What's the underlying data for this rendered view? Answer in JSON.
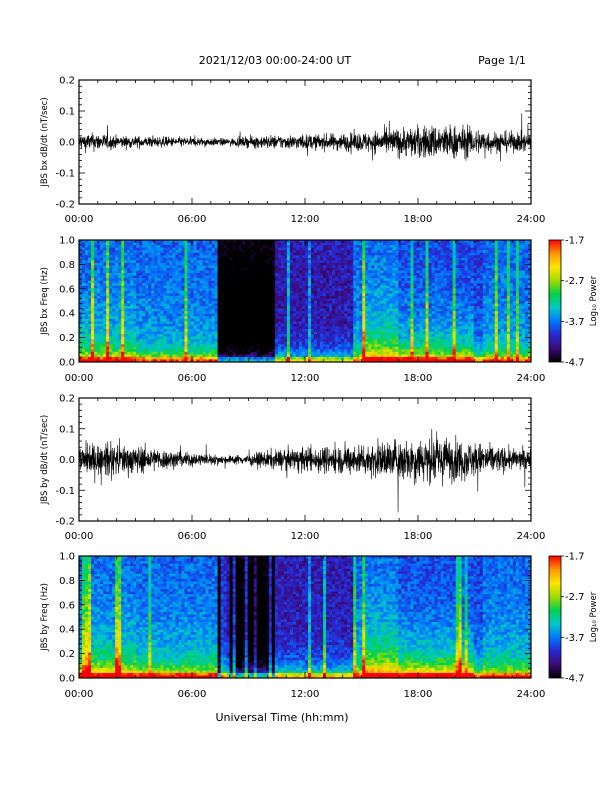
{
  "header": {
    "title": "2021/12/03  00:00-24:00 UT",
    "page": "Page 1/1"
  },
  "xaxis_label": "Universal Time (hh:mm)",
  "colorbar": {
    "label": "Log₁₀ Power",
    "ticks": [
      "-1.7",
      "-2.7",
      "-3.7",
      "-4.7"
    ],
    "colors": [
      "#000000",
      "#3c0a78",
      "#2828d2",
      "#0078ff",
      "#00c8c8",
      "#00d24b",
      "#a0dc00",
      "#ffe600",
      "#ff9600",
      "#ff0000"
    ]
  },
  "chart_data": [
    {
      "type": "line",
      "title": "",
      "ylabel": "JBS bx dB/dt (nT/sec)",
      "xlabel": "",
      "x_ticks": [
        "00:00",
        "06:00",
        "12:00",
        "18:00",
        "24:00"
      ],
      "y_ticks": [
        "0.2",
        "0.1",
        "0.0",
        "-0.1",
        "-0.2"
      ],
      "xlim": [
        0,
        24
      ],
      "ylim": [
        -0.2,
        0.2
      ],
      "amplitude_profile": [
        [
          0,
          0.025
        ],
        [
          1,
          0.025
        ],
        [
          2,
          0.018
        ],
        [
          4,
          0.015
        ],
        [
          6,
          0.013
        ],
        [
          8,
          0.01
        ],
        [
          9.5,
          0.018
        ],
        [
          11,
          0.02
        ],
        [
          13,
          0.022
        ],
        [
          15,
          0.027
        ],
        [
          16,
          0.033
        ],
        [
          17,
          0.04
        ],
        [
          18,
          0.045
        ],
        [
          19,
          0.05
        ],
        [
          20,
          0.048
        ],
        [
          21,
          0.04
        ],
        [
          22,
          0.03
        ],
        [
          24,
          0.026
        ]
      ]
    },
    {
      "type": "heatmap",
      "title": "",
      "ylabel": "JBS bx Freq (Hz)",
      "xlabel": "",
      "x_ticks": [
        "00:00",
        "06:00",
        "12:00",
        "18:00",
        "24:00"
      ],
      "y_ticks": [
        "1.0",
        "0.8",
        "0.6",
        "0.4",
        "0.2",
        "0.0"
      ],
      "xlim": [
        0,
        24
      ],
      "ylim": [
        0,
        1
      ],
      "zlim": [
        -4.7,
        -1.7
      ]
    },
    {
      "type": "line",
      "title": "",
      "ylabel": "JBS by dB/dt (nT/sec)",
      "xlabel": "",
      "x_ticks": [
        "00:00",
        "06:00",
        "12:00",
        "18:00",
        "24:00"
      ],
      "y_ticks": [
        "0.2",
        "0.1",
        "0.0",
        "-0.1",
        "-0.2"
      ],
      "xlim": [
        0,
        24
      ],
      "ylim": [
        -0.2,
        0.2
      ],
      "amplitude_profile": [
        [
          0,
          0.04
        ],
        [
          1,
          0.045
        ],
        [
          2,
          0.045
        ],
        [
          3,
          0.04
        ],
        [
          5,
          0.025
        ],
        [
          6,
          0.02
        ],
        [
          7,
          0.015
        ],
        [
          8,
          0.012
        ],
        [
          9,
          0.015
        ],
        [
          10,
          0.025
        ],
        [
          12,
          0.035
        ],
        [
          14,
          0.04
        ],
        [
          15,
          0.045
        ],
        [
          16,
          0.05
        ],
        [
          17,
          0.06
        ],
        [
          18,
          0.065
        ],
        [
          19,
          0.065
        ],
        [
          20,
          0.06
        ],
        [
          21,
          0.05
        ],
        [
          22,
          0.04
        ],
        [
          23,
          0.03
        ],
        [
          24,
          0.03
        ]
      ]
    },
    {
      "type": "heatmap",
      "title": "",
      "ylabel": "JBS by Freq (Hz)",
      "xlabel": "",
      "x_ticks": [
        "00:00",
        "06:00",
        "12:00",
        "18:00",
        "24:00"
      ],
      "y_ticks": [
        "1.0",
        "0.8",
        "0.6",
        "0.4",
        "0.2",
        "0.0"
      ],
      "xlim": [
        0,
        24
      ],
      "ylim": [
        0,
        1
      ],
      "zlim": [
        -4.7,
        -1.7
      ]
    }
  ]
}
